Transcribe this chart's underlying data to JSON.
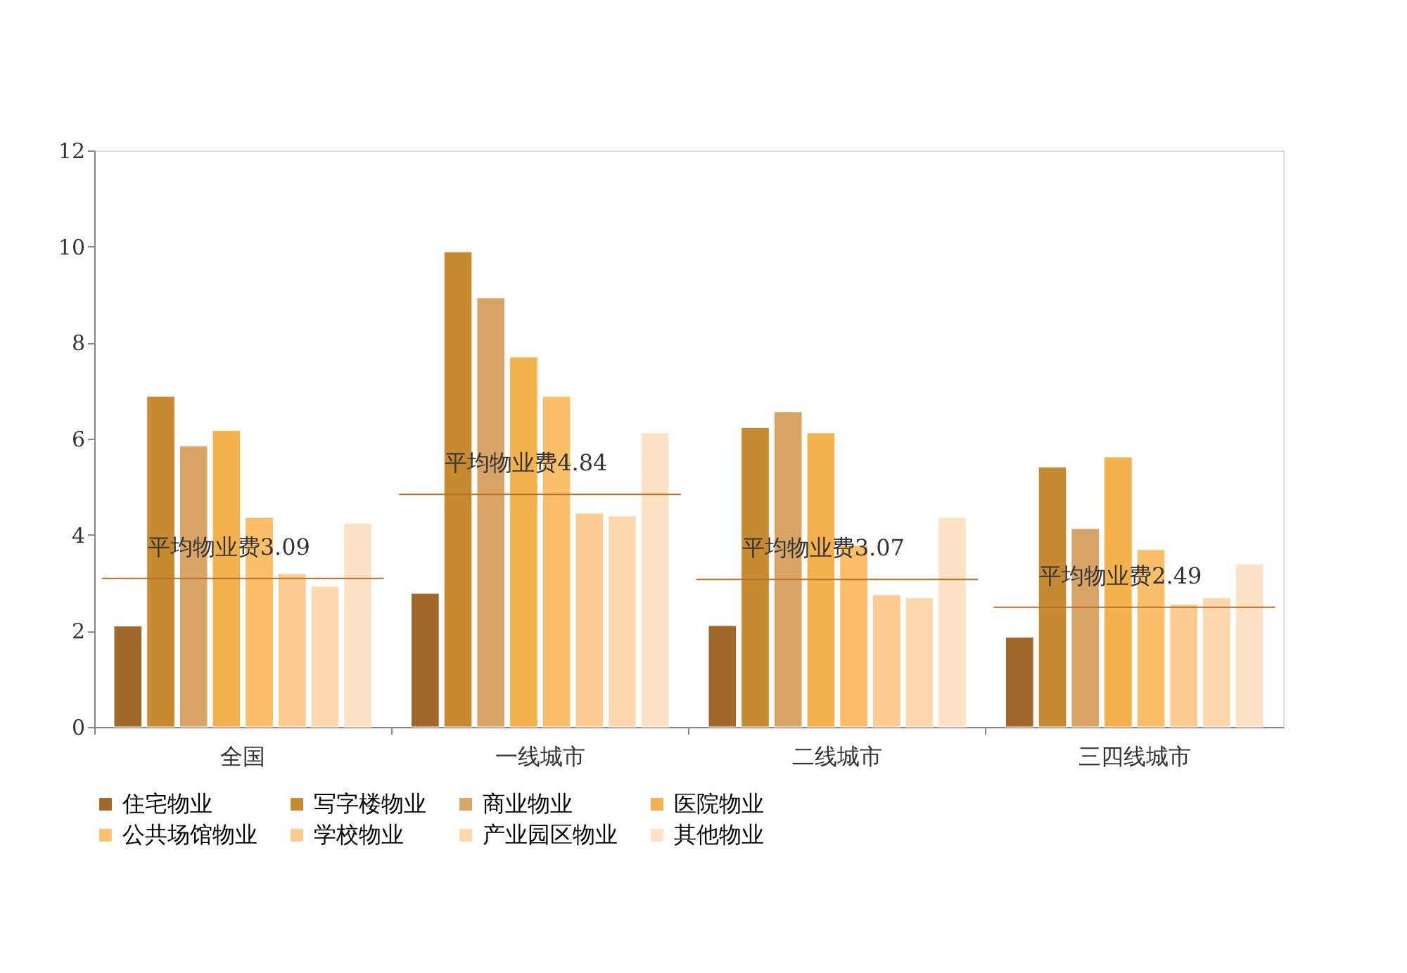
{
  "chart_data": {
    "type": "bar",
    "categories": [
      "全国",
      "一线城市",
      "二线城市",
      "三四线城市"
    ],
    "series": [
      {
        "name": "住宅物业",
        "color": "#a0692a",
        "values": [
          2.1,
          2.78,
          2.11,
          1.87
        ]
      },
      {
        "name": "写字楼物业",
        "color": "#c68a30",
        "values": [
          6.88,
          9.89,
          6.23,
          5.41
        ]
      },
      {
        "name": "商业物业",
        "color": "#d9a566",
        "values": [
          5.85,
          8.93,
          6.56,
          4.13
        ]
      },
      {
        "name": "医院物业",
        "color": "#f4b24f",
        "values": [
          6.17,
          7.7,
          6.12,
          5.62
        ]
      },
      {
        "name": "公共场馆物业",
        "color": "#fbbf69",
        "values": [
          4.36,
          6.88,
          3.78,
          3.69
        ]
      },
      {
        "name": "学校物业",
        "color": "#fdcb90",
        "values": [
          3.19,
          4.45,
          2.75,
          2.55
        ]
      },
      {
        "name": "产业园区物业",
        "color": "#fdd8ac",
        "values": [
          2.93,
          4.39,
          2.69,
          2.69
        ]
      },
      {
        "name": "其他物业",
        "color": "#fde2c6",
        "values": [
          4.24,
          6.12,
          4.36,
          3.39
        ]
      }
    ],
    "ylim": [
      0,
      12
    ],
    "yticks": [
      0,
      2,
      4,
      6,
      8,
      10,
      12
    ],
    "annotations": [
      {
        "text": "平均物业费3.09",
        "x": "全国",
        "y": 3.09
      },
      {
        "text": "平均物业费4.84",
        "x": "一线城市",
        "y": 4.84
      },
      {
        "text": "平均物业费3.07",
        "x": "二线城市",
        "y": 3.07
      },
      {
        "text": "平均物业费2.49",
        "x": "三四线城市",
        "y": 2.49
      }
    ],
    "grid": false,
    "legend": "bottom"
  }
}
